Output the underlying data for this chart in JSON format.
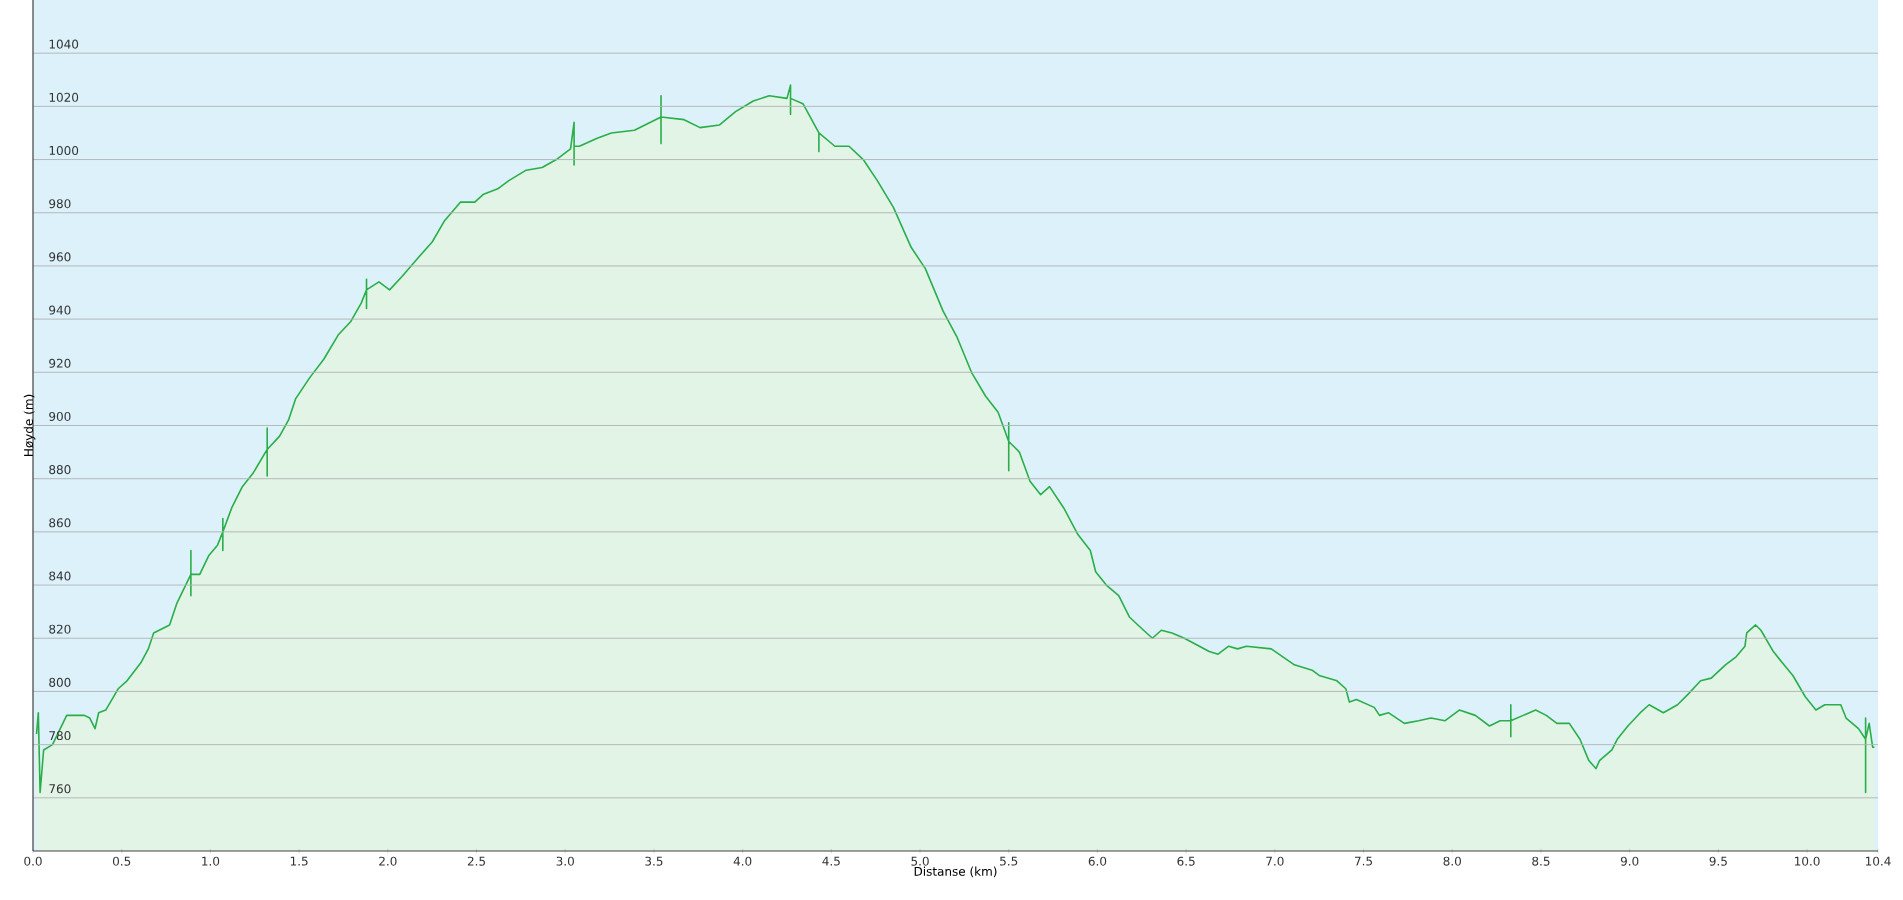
{
  "chart_data": {
    "type": "area",
    "xlabel": "Distanse (km)",
    "ylabel": "Høyde (m)",
    "xlim": [
      0,
      10.4
    ],
    "ylim": [
      740,
      1060
    ],
    "xticks": [
      {
        "value": 0,
        "label": "0.0"
      },
      0.5,
      {
        "value": 1,
        "label": "1.0"
      },
      1.5,
      {
        "value": 2,
        "label": "2.0"
      },
      2.5,
      {
        "value": 3,
        "label": "3.0"
      },
      3.5,
      {
        "value": 4,
        "label": "4.0"
      },
      4.5,
      {
        "value": 5,
        "label": "5.0"
      },
      5.5,
      {
        "value": 6,
        "label": "6.0"
      },
      6.5,
      {
        "value": 7,
        "label": "7.0"
      },
      7.5,
      {
        "value": 8,
        "label": "8.0"
      },
      8.5,
      {
        "value": 9,
        "label": "9.0"
      },
      9.5,
      {
        "value": 10,
        "label": "10.0"
      },
      10.4
    ],
    "yticks": [
      760,
      780,
      800,
      820,
      840,
      860,
      880,
      900,
      920,
      940,
      960,
      980,
      1000,
      1020,
      1040
    ],
    "grid": "y",
    "series": [
      {
        "color": "#2aae4a",
        "x": [
          0.02,
          0.03,
          0.04,
          0.06,
          0.11,
          0.19,
          0.29,
          0.32,
          0.35,
          0.37,
          0.41,
          0.48,
          0.53,
          0.61,
          0.65,
          0.68,
          0.77,
          0.81,
          0.89,
          0.89,
          0.89,
          0.89,
          0.94,
          0.99,
          1.04,
          1.07,
          1.07,
          1.07,
          1.07,
          1.12,
          1.18,
          1.24,
          1.32,
          1.32,
          1.32,
          1.32,
          1.39,
          1.44,
          1.48,
          1.56,
          1.64,
          1.72,
          1.79,
          1.85,
          1.88,
          1.88,
          1.88,
          1.88,
          1.95,
          2.01,
          2.08,
          2.17,
          2.25,
          2.32,
          2.41,
          2.49,
          2.54,
          2.62,
          2.68,
          2.78,
          2.87,
          2.95,
          3.03,
          3.05,
          3.05,
          3.05,
          3.08,
          3.18,
          3.26,
          3.39,
          3.54,
          3.54,
          3.54,
          3.54,
          3.67,
          3.76,
          3.87,
          3.96,
          4.06,
          4.15,
          4.25,
          4.27,
          4.27,
          4.27,
          4.34,
          4.43,
          4.43,
          4.43,
          4.52,
          4.6,
          4.68,
          4.76,
          4.85,
          4.95,
          5.03,
          5.13,
          5.21,
          5.29,
          5.37,
          5.44,
          5.5,
          5.5,
          5.5,
          5.5,
          5.56,
          5.62,
          5.68,
          5.73,
          5.81,
          5.89,
          5.96,
          5.99,
          6.05,
          6.12,
          6.18,
          6.26,
          6.31,
          6.36,
          6.42,
          6.49,
          6.63,
          6.68,
          6.74,
          6.79,
          6.84,
          6.98,
          7.11,
          7.21,
          7.25,
          7.35,
          7.4,
          7.42,
          7.46,
          7.56,
          7.59,
          7.64,
          7.73,
          7.81,
          7.88,
          7.96,
          8.04,
          8.13,
          8.21,
          8.27,
          8.33,
          8.33,
          8.33,
          8.33,
          8.4,
          8.47,
          8.53,
          8.59,
          8.66,
          8.72,
          8.77,
          8.81,
          8.83,
          8.9,
          8.93,
          8.99,
          9.06,
          9.11,
          9.19,
          9.27,
          9.33,
          9.4,
          9.46,
          9.54,
          9.6,
          9.65,
          9.66,
          9.71,
          9.74,
          9.81,
          9.87,
          9.92,
          9.99,
          10.05,
          10.1,
          10.19,
          10.22,
          10.29,
          10.33,
          10.33,
          10.33,
          10.33,
          10.35,
          10.37,
          10.38
        ],
        "values": [
          784,
          792,
          762,
          778,
          780,
          791,
          791,
          790,
          786,
          792,
          793,
          801,
          804,
          811,
          816,
          822,
          825,
          833,
          844,
          853,
          836,
          844,
          844,
          851,
          855,
          860,
          865,
          853,
          860,
          869,
          877,
          882,
          891,
          899,
          881,
          891,
          896,
          902,
          910,
          918,
          925,
          934,
          939,
          946,
          951,
          955,
          944,
          951,
          954,
          951,
          956,
          963,
          969,
          977,
          984,
          984,
          987,
          989,
          992,
          996,
          997,
          1000,
          1004,
          1014,
          998,
          1005,
          1005,
          1008,
          1010,
          1011,
          1016,
          1024,
          1006,
          1016,
          1015,
          1012,
          1013,
          1018,
          1022,
          1024,
          1023,
          1028,
          1017,
          1023,
          1021,
          1010,
          1003,
          1010,
          1005,
          1005,
          1000,
          992,
          982,
          967,
          959,
          943,
          933,
          920,
          911,
          905,
          894,
          901,
          883,
          894,
          890,
          879,
          874,
          877,
          869,
          859,
          853,
          845,
          840,
          836,
          828,
          823,
          820,
          823,
          822,
          820,
          815,
          814,
          817,
          816,
          817,
          816,
          810,
          808,
          806,
          804,
          801,
          796,
          797,
          794,
          791,
          792,
          788,
          789,
          790,
          789,
          793,
          791,
          787,
          789,
          789,
          795,
          783,
          789,
          791,
          793,
          791,
          788,
          788,
          782,
          774,
          771,
          774,
          778,
          782,
          787,
          792,
          795,
          792,
          795,
          799,
          804,
          805,
          810,
          813,
          817,
          822,
          825,
          823,
          815,
          810,
          806,
          798,
          793,
          795,
          795,
          790,
          786,
          782,
          762,
          790,
          782,
          788,
          779,
          779
        ]
      }
    ]
  }
}
